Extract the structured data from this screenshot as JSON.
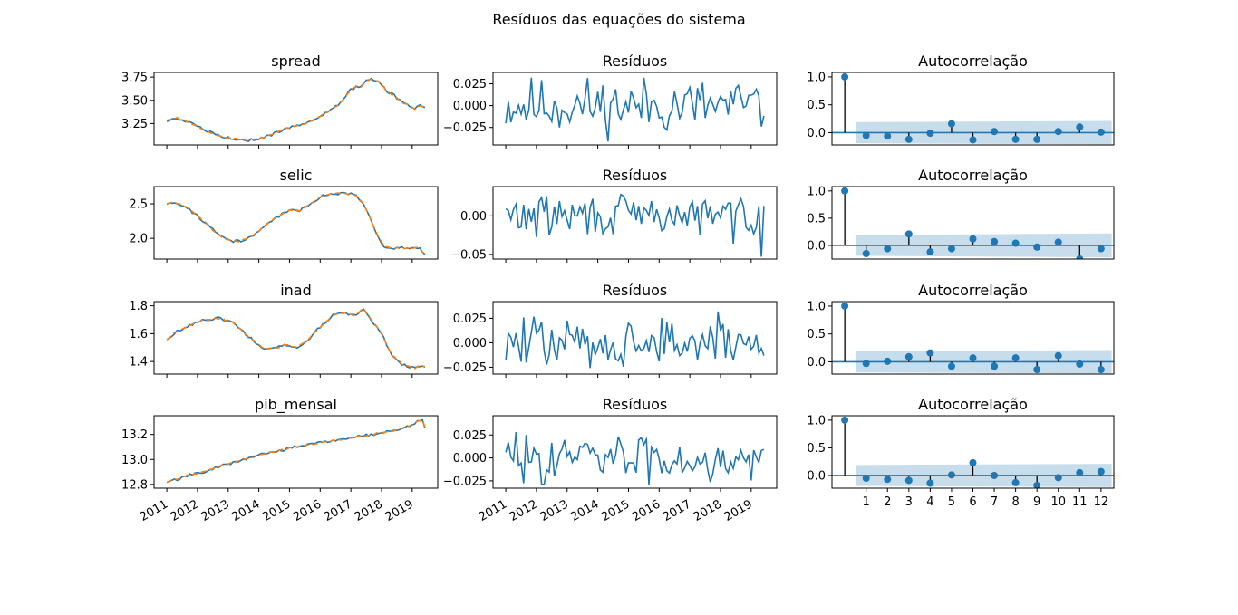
{
  "figure": {
    "title": "Resíduos das equações do sistema",
    "colors": {
      "series": "#1f77b4",
      "fitted": "#ff7f0e",
      "band": "#1f77b4",
      "stem": "#000000"
    }
  },
  "x_axis": {
    "date_range": [
      "2011-01",
      "2019-06"
    ],
    "date_ticks": [
      "2011",
      "2012",
      "2013",
      "2014",
      "2015",
      "2016",
      "2017",
      "2018",
      "2019"
    ],
    "acf_ticks": [
      "1",
      "2",
      "3",
      "4",
      "5",
      "6",
      "7",
      "8",
      "9",
      "10",
      "11",
      "12"
    ]
  },
  "chart_data": [
    {
      "type": "line",
      "title": "spread",
      "ylim": [
        3.02,
        3.8
      ],
      "yticks": [
        "3.25",
        "3.50",
        "3.75"
      ],
      "ytick_values": [
        3.25,
        3.5,
        3.75
      ],
      "knots_value": [
        3.28,
        3.31,
        3.27,
        3.19,
        3.12,
        3.09,
        3.07,
        3.1,
        3.14,
        3.2,
        3.23,
        3.26,
        3.33,
        3.4,
        3.47,
        3.62,
        3.66,
        3.73,
        3.7,
        3.6,
        3.55,
        3.48,
        3.44,
        3.43,
        3.41,
        3.44,
        3.44,
        3.43
      ],
      "knots_date": [
        "2011-01",
        "2011-05",
        "2011-09",
        "2012-03",
        "2012-09",
        "2013-03",
        "2013-09",
        "2014-03",
        "2014-07",
        "2014-12",
        "2015-04",
        "2015-08",
        "2016-01",
        "2016-05",
        "2016-09",
        "2017-01",
        "2017-05",
        "2017-08",
        "2017-12",
        "2018-03",
        "2018-06",
        "2018-09",
        "2018-12",
        "2019-01",
        "2019-02",
        "2019-04",
        "2019-05",
        "2019-06"
      ],
      "series": [
        {
          "role": "observed"
        },
        {
          "role": "fitted"
        }
      ]
    },
    {
      "type": "line",
      "title": "selic",
      "ylim": [
        1.7,
        2.75
      ],
      "yticks": [
        "2.0",
        "2.5"
      ],
      "ytick_values": [
        2.0,
        2.5
      ],
      "knots_value": [
        2.5,
        2.52,
        2.47,
        2.35,
        2.2,
        2.05,
        1.96,
        1.96,
        2.05,
        2.23,
        2.35,
        2.4,
        2.4,
        2.5,
        2.6,
        2.65,
        2.65,
        2.65,
        2.63,
        2.5,
        2.25,
        2.0,
        1.88,
        1.86,
        1.86,
        1.86,
        1.86,
        1.75
      ],
      "knots_date": [
        "2011-01",
        "2011-04",
        "2011-08",
        "2011-12",
        "2012-05",
        "2012-09",
        "2013-02",
        "2013-06",
        "2013-11",
        "2014-05",
        "2014-10",
        "2015-01",
        "2015-05",
        "2015-09",
        "2016-01",
        "2016-05",
        "2016-09",
        "2017-01",
        "2017-03",
        "2017-06",
        "2017-09",
        "2017-12",
        "2018-02",
        "2018-06",
        "2018-10",
        "2019-02",
        "2019-04",
        "2019-06"
      ],
      "series": [
        {
          "role": "observed"
        },
        {
          "role": "fitted"
        }
      ]
    },
    {
      "type": "line",
      "title": "inad",
      "ylim": [
        1.31,
        1.83
      ],
      "yticks": [
        "1.4",
        "1.6",
        "1.8"
      ],
      "ytick_values": [
        1.4,
        1.6,
        1.8
      ],
      "knots_value": [
        1.56,
        1.62,
        1.66,
        1.7,
        1.71,
        1.69,
        1.61,
        1.55,
        1.49,
        1.5,
        1.52,
        1.5,
        1.55,
        1.65,
        1.73,
        1.75,
        1.73,
        1.78,
        1.7,
        1.6,
        1.45,
        1.38,
        1.36,
        1.35,
        1.37,
        1.36
      ],
      "knots_date": [
        "2011-01",
        "2011-05",
        "2011-10",
        "2012-03",
        "2012-09",
        "2013-02",
        "2013-07",
        "2013-11",
        "2014-03",
        "2014-08",
        "2014-12",
        "2015-04",
        "2015-08",
        "2016-01",
        "2016-06",
        "2016-10",
        "2017-02",
        "2017-06",
        "2017-09",
        "2018-01",
        "2018-05",
        "2018-09",
        "2018-12",
        "2019-02",
        "2019-04",
        "2019-06"
      ],
      "series": [
        {
          "role": "observed"
        },
        {
          "role": "fitted"
        }
      ]
    },
    {
      "type": "line",
      "title": "pib_mensal",
      "ylim": [
        12.77,
        13.35
      ],
      "yticks": [
        "12.8",
        "13.0",
        "13.2"
      ],
      "ytick_values": [
        12.8,
        13.0,
        13.2
      ],
      "knots_value": [
        12.82,
        12.84,
        12.88,
        12.9,
        12.95,
        12.98,
        13.02,
        13.05,
        13.07,
        13.1,
        13.12,
        13.14,
        13.16,
        13.18,
        13.2,
        13.22,
        13.24,
        13.26,
        13.28,
        13.3,
        13.31,
        13.26
      ],
      "knots_date": [
        "2011-01",
        "2011-05",
        "2011-10",
        "2012-04",
        "2012-10",
        "2013-04",
        "2013-10",
        "2014-04",
        "2014-09",
        "2015-03",
        "2015-09",
        "2016-03",
        "2016-09",
        "2017-03",
        "2017-09",
        "2018-03",
        "2018-07",
        "2018-11",
        "2019-01",
        "2019-03",
        "2019-05",
        "2019-06"
      ],
      "series": [
        {
          "role": "observed"
        },
        {
          "role": "fitted"
        }
      ]
    },
    {
      "type": "line",
      "title": "Resíduos",
      "ylim": [
        -0.045,
        0.038
      ],
      "yticks": [
        "−0.025",
        "0.000",
        "0.025"
      ],
      "ytick_values": [
        -0.025,
        0.0,
        0.025
      ],
      "amplitude": 0.02,
      "seed": 11
    },
    {
      "type": "line",
      "title": "Resíduos",
      "ylim": [
        -0.056,
        0.038
      ],
      "yticks": [
        "−0.05",
        "0.00"
      ],
      "ytick_values": [
        -0.05,
        0.0
      ],
      "amplitude": 0.017,
      "seed": 29,
      "last_values": [
        -0.053,
        0.013
      ]
    },
    {
      "type": "line",
      "title": "Resíduos",
      "ylim": [
        -0.032,
        0.042
      ],
      "yticks": [
        "−0.025",
        "0.000",
        "0.025"
      ],
      "ytick_values": [
        -0.025,
        0.0,
        0.025
      ],
      "amplitude": 0.016,
      "seed": 47
    },
    {
      "type": "line",
      "title": "Resíduos",
      "ylim": [
        -0.033,
        0.046
      ],
      "yticks": [
        "−0.025",
        "0.000",
        "0.025"
      ],
      "ytick_values": [
        -0.025,
        0.0,
        0.025
      ],
      "amplitude": 0.017,
      "seed": 83
    },
    {
      "type": "scatter",
      "title": "Autocorrelação",
      "ylim": [
        -0.22,
        1.08
      ],
      "yticks": [
        "0.0",
        "0.5",
        "1.0"
      ],
      "ytick_values": [
        0.0,
        0.5,
        1.0
      ],
      "lags": [
        0,
        1,
        2,
        3,
        4,
        5,
        6,
        7,
        8,
        9,
        10,
        11,
        12
      ],
      "values": [
        1.0,
        -0.05,
        -0.06,
        -0.12,
        -0.01,
        0.16,
        -0.13,
        0.02,
        -0.12,
        -0.12,
        0.02,
        0.1,
        0.01
      ],
      "band": [
        0.19,
        0.21
      ]
    },
    {
      "type": "scatter",
      "title": "Autocorrelação",
      "ylim": [
        -0.25,
        1.08
      ],
      "yticks": [
        "0.0",
        "0.5",
        "1.0"
      ],
      "ytick_values": [
        0.0,
        0.5,
        1.0
      ],
      "lags": [
        0,
        1,
        2,
        3,
        4,
        5,
        6,
        7,
        8,
        9,
        10,
        11,
        12
      ],
      "values": [
        1.0,
        -0.15,
        -0.06,
        0.21,
        -0.12,
        -0.06,
        0.12,
        0.07,
        0.04,
        -0.03,
        0.06,
        -0.25,
        -0.06
      ],
      "band": [
        0.19,
        0.22
      ]
    },
    {
      "type": "scatter",
      "title": "Autocorrelação",
      "ylim": [
        -0.22,
        1.08
      ],
      "yticks": [
        "0.0",
        "0.5",
        "1.0"
      ],
      "ytick_values": [
        0.0,
        0.5,
        1.0
      ],
      "lags": [
        0,
        1,
        2,
        3,
        4,
        5,
        6,
        7,
        8,
        9,
        10,
        11,
        12
      ],
      "values": [
        1.0,
        -0.03,
        0.01,
        0.09,
        0.16,
        -0.08,
        0.07,
        -0.08,
        0.07,
        -0.14,
        0.11,
        -0.04,
        -0.14
      ],
      "band": [
        0.19,
        0.21
      ]
    },
    {
      "type": "scatter",
      "title": "Autocorrelação",
      "ylim": [
        -0.23,
        1.08
      ],
      "yticks": [
        "0.0",
        "0.5",
        "1.0"
      ],
      "ytick_values": [
        0.0,
        0.5,
        1.0
      ],
      "lags": [
        0,
        1,
        2,
        3,
        4,
        5,
        6,
        7,
        8,
        9,
        10,
        11,
        12
      ],
      "values": [
        1.0,
        -0.05,
        -0.07,
        -0.09,
        -0.14,
        0.01,
        0.23,
        0.0,
        -0.13,
        -0.18,
        -0.04,
        0.05,
        0.07
      ],
      "band": [
        0.19,
        0.21
      ]
    }
  ]
}
